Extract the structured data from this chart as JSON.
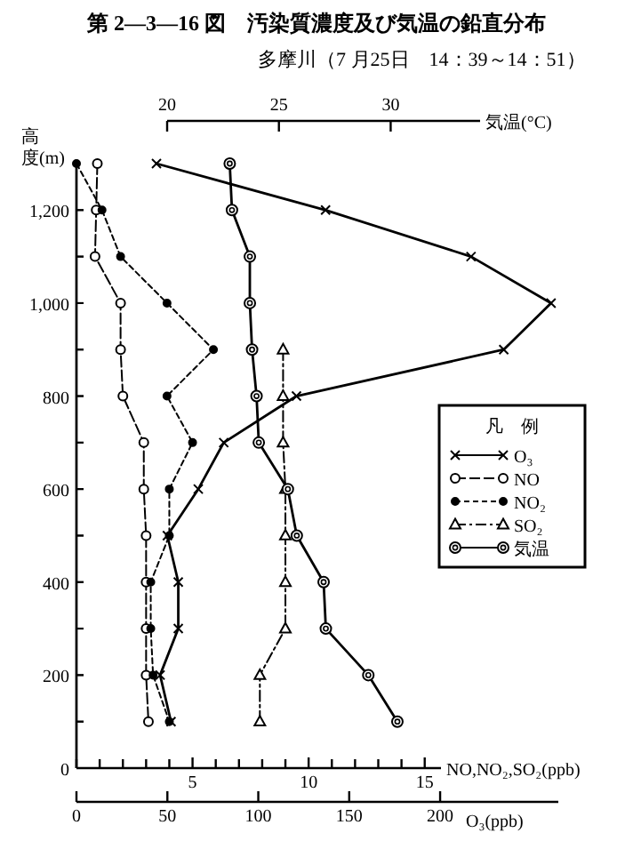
{
  "chart_data": [
    {
      "type": "line",
      "title": "第 2—3—16 図　汚染質濃度及び気温の鉛直分布",
      "subtitle": "多摩川（7 月25日　14：39～14：51）",
      "ylabel": "高度(m)",
      "xlabel": "NO,NO₂,SO₂(ppb)",
      "x2label": "気温(°C)",
      "legend_title": "凡　例",
      "legend": "right",
      "ylim": [
        0,
        1300
      ],
      "yticks": [
        0,
        {
          "value": 100,
          "label": null
        },
        200,
        {
          "value": 300,
          "label": null
        },
        400,
        {
          "value": 500,
          "label": null
        },
        600,
        {
          "value": 700,
          "label": null
        },
        800,
        {
          "value": 900,
          "label": null
        },
        {
          "value": 1000,
          "label": "1,000"
        },
        {
          "value": 1100,
          "label": null
        },
        {
          "value": 1200,
          "label": "1,200"
        }
      ],
      "xlim": [
        0,
        15.7
      ],
      "xticks": [
        {
          "value": 0,
          "label": null
        },
        {
          "value": 1,
          "label": null
        },
        {
          "value": 2,
          "label": null
        },
        {
          "value": 3,
          "label": null
        },
        {
          "value": 4,
          "label": null
        },
        5,
        {
          "value": 6,
          "label": null
        },
        {
          "value": 7,
          "label": null
        },
        {
          "value": 8,
          "label": null
        },
        {
          "value": 9,
          "label": null
        },
        10,
        {
          "value": 11,
          "label": null
        },
        {
          "value": 12,
          "label": null
        },
        {
          "value": 13,
          "label": null
        },
        {
          "value": 14,
          "label": null
        },
        15
      ],
      "x2lim": [
        20,
        34
      ],
      "x2ticks": [
        20,
        25,
        30
      ],
      "series": [
        {
          "name": "NO",
          "color": "#000000",
          "marker": "circle",
          "line_style": "dashed",
          "x": [
            0.9,
            0.85,
            0.8,
            1.9,
            1.9,
            2.0,
            2.9,
            2.9,
            3.0,
            3.0,
            3.0,
            3.0,
            3.1
          ],
          "values": [
            1300,
            1200,
            1100,
            1000,
            900,
            800,
            700,
            600,
            500,
            400,
            300,
            200,
            100
          ]
        },
        {
          "name": "NO₂",
          "color": "#000000",
          "marker": "dot",
          "line_style": "dotted",
          "x": [
            0,
            1.1,
            1.9,
            3.9,
            5.9,
            3.9,
            5.0,
            4.0,
            4.0,
            3.2,
            3.2,
            3.3,
            4.0
          ],
          "values": [
            1300,
            1200,
            1100,
            1000,
            900,
            800,
            700,
            600,
            500,
            400,
            300,
            200,
            100
          ]
        },
        {
          "name": "SO₂",
          "color": "#000000",
          "marker": "triangle",
          "line_style": "dashdot",
          "x": [
            8.9,
            8.9,
            8.9,
            9.0,
            9.0,
            9.0,
            9.0,
            7.9,
            7.9
          ],
          "values": [
            900,
            800,
            700,
            600,
            500,
            400,
            300,
            200,
            100
          ]
        },
        {
          "name": "気温",
          "color": "#000000",
          "axis": "x2",
          "marker": "double_circle",
          "line_style": "solid",
          "x": [
            22.8,
            22.9,
            23.7,
            23.7,
            23.8,
            24.0,
            24.1,
            25.4,
            25.8,
            27.0,
            27.1,
            29.0,
            30.3
          ],
          "values": [
            1300,
            1200,
            1100,
            1000,
            900,
            800,
            700,
            600,
            500,
            400,
            300,
            200,
            100
          ]
        }
      ]
    },
    {
      "type": "line",
      "xlabel": "O₃(ppb)",
      "legend": "right",
      "tick_labels": "x",
      "ylim": [
        0,
        1300
      ],
      "yticks": [
        0,
        100,
        200,
        300,
        400,
        500,
        600,
        700,
        800,
        900,
        1000,
        1100,
        1200
      ],
      "xlim": [
        0,
        265
      ],
      "xticks": [
        0,
        50,
        100,
        150,
        200
      ],
      "series": [
        {
          "name": "O₃",
          "color": "#000000",
          "marker": "cross",
          "line_style": "solid",
          "x": [
            44,
            137,
            217,
            261,
            235,
            121,
            81,
            67,
            50,
            56,
            56,
            46,
            52
          ],
          "values": [
            1300,
            1200,
            1100,
            1000,
            900,
            800,
            700,
            600,
            500,
            400,
            300,
            200,
            100
          ]
        }
      ]
    }
  ]
}
